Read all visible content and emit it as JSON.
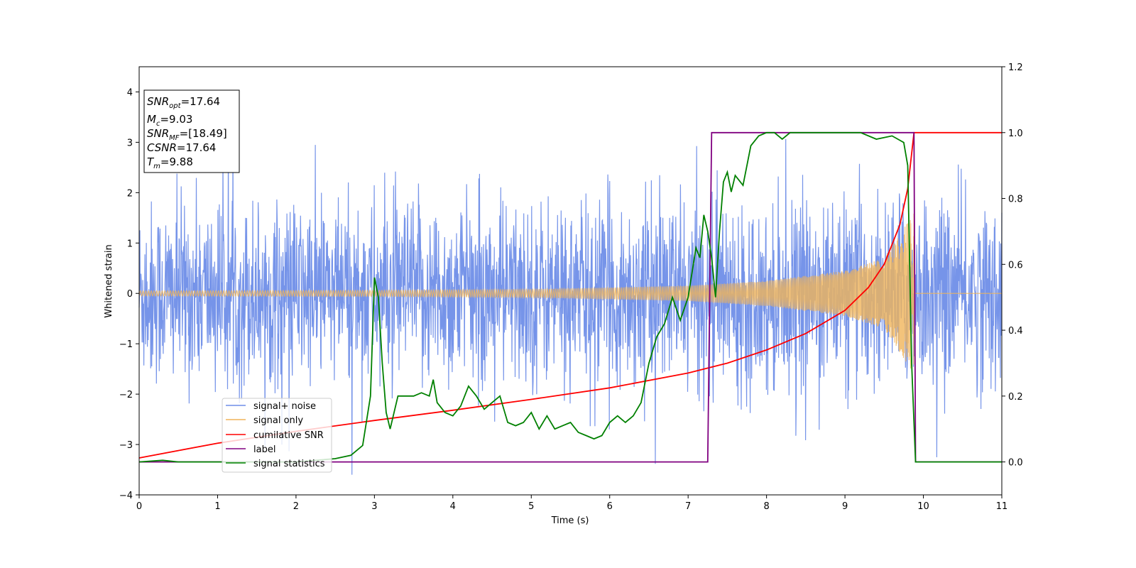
{
  "chart_data": {
    "type": "line",
    "xlabel": "Time (s)",
    "ylabel": "Whitened strain",
    "xlim": [
      0,
      11
    ],
    "ylim": [
      -4,
      4.5
    ],
    "y2lim": [
      -0.1,
      1.2
    ],
    "x_ticks": [
      "0",
      "1",
      "2",
      "3",
      "4",
      "5",
      "6",
      "7",
      "8",
      "9",
      "10",
      "11"
    ],
    "y_ticks": [
      "−4",
      "−3",
      "−2",
      "−1",
      "0",
      "1",
      "2",
      "3",
      "4"
    ],
    "y2_ticks": [
      "0.0",
      "0.2",
      "0.4",
      "0.6",
      "0.8",
      "1.0",
      "1.2"
    ],
    "grid": false,
    "legend_placement": "lower-left",
    "info_box": {
      "snr_opt": "=17.64",
      "mc": "=9.03",
      "snr_mf": "=[18.49]",
      "csnr": "=17.64",
      "tm": "=9.88"
    },
    "series": [
      {
        "name": "signal+ noise",
        "axis": "left",
        "color": "#6f8ee8",
        "description": "whitened noise, roughly ±2.5 with spikes to ~4; random samples",
        "amplitude_std": 0.9
      },
      {
        "name": "signal only",
        "axis": "left",
        "color": "#f0b45a",
        "description": "chirp growing in amplitude until merger",
        "x_end": 9.88,
        "envelope": [
          [
            0,
            0.05
          ],
          [
            3,
            0.06
          ],
          [
            5,
            0.08
          ],
          [
            7,
            0.15
          ],
          [
            8,
            0.25
          ],
          [
            9,
            0.45
          ],
          [
            9.5,
            0.7
          ],
          [
            9.88,
            1.6
          ]
        ]
      },
      {
        "name": "cumilative SNR",
        "axis": "right",
        "color": "#ff0000",
        "x": [
          0,
          1,
          2,
          3,
          4,
          5,
          6,
          7,
          7.5,
          8,
          8.5,
          9,
          9.3,
          9.5,
          9.7,
          9.8,
          9.88,
          9.9,
          11
        ],
        "y": [
          0.012,
          0.057,
          0.093,
          0.126,
          0.157,
          0.19,
          0.225,
          0.27,
          0.3,
          0.34,
          0.39,
          0.46,
          0.53,
          0.6,
          0.72,
          0.83,
          1.0,
          1.0,
          1.0
        ]
      },
      {
        "name": "label",
        "axis": "right",
        "color": "#800080",
        "x": [
          0,
          7.25,
          7.3,
          9.88,
          9.9,
          11
        ],
        "y": [
          0,
          0,
          1,
          1,
          0,
          0
        ]
      },
      {
        "name": "signal statistics",
        "axis": "right",
        "color": "#008000",
        "x": [
          0,
          0.3,
          0.5,
          1,
          2,
          2.5,
          2.7,
          2.85,
          2.95,
          3.0,
          3.05,
          3.1,
          3.15,
          3.2,
          3.3,
          3.4,
          3.5,
          3.6,
          3.7,
          3.75,
          3.8,
          3.9,
          4.0,
          4.1,
          4.2,
          4.3,
          4.4,
          4.5,
          4.6,
          4.7,
          4.8,
          4.9,
          5.0,
          5.1,
          5.2,
          5.3,
          5.4,
          5.5,
          5.6,
          5.7,
          5.8,
          5.9,
          6.0,
          6.1,
          6.2,
          6.3,
          6.4,
          6.5,
          6.55,
          6.6,
          6.7,
          6.8,
          6.9,
          7.0,
          7.1,
          7.15,
          7.2,
          7.25,
          7.3,
          7.35,
          7.4,
          7.45,
          7.5,
          7.55,
          7.6,
          7.7,
          7.75,
          7.8,
          7.9,
          8.0,
          8.1,
          8.2,
          8.3,
          8.4,
          8.5,
          8.6,
          8.7,
          8.8,
          9.0,
          9.2,
          9.4,
          9.6,
          9.75,
          9.8,
          9.85,
          9.9,
          10.0,
          11.0
        ],
        "y": [
          0.0,
          0.005,
          0.0,
          0.0,
          0.0,
          0.01,
          0.02,
          0.05,
          0.2,
          0.56,
          0.5,
          0.3,
          0.15,
          0.1,
          0.2,
          0.2,
          0.2,
          0.21,
          0.2,
          0.25,
          0.18,
          0.15,
          0.14,
          0.17,
          0.23,
          0.2,
          0.16,
          0.18,
          0.2,
          0.12,
          0.11,
          0.12,
          0.15,
          0.1,
          0.14,
          0.1,
          0.11,
          0.12,
          0.09,
          0.08,
          0.07,
          0.08,
          0.12,
          0.14,
          0.12,
          0.14,
          0.18,
          0.3,
          0.34,
          0.38,
          0.42,
          0.5,
          0.43,
          0.5,
          0.65,
          0.62,
          0.75,
          0.7,
          0.62,
          0.5,
          0.7,
          0.85,
          0.88,
          0.82,
          0.87,
          0.84,
          0.9,
          0.96,
          0.99,
          1.0,
          1.0,
          0.98,
          1.0,
          1.0,
          1.0,
          1.0,
          1.0,
          1.0,
          1.0,
          1.0,
          0.98,
          0.99,
          0.97,
          0.9,
          0.3,
          0.0,
          0.0,
          0.0
        ]
      }
    ]
  }
}
